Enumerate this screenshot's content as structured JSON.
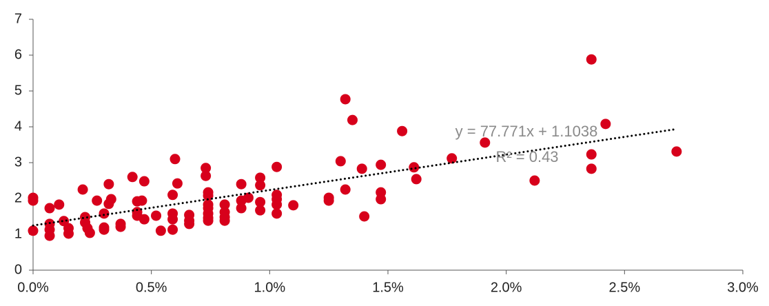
{
  "chart_data": {
    "type": "scatter",
    "x": [
      0,
      0,
      0,
      0.07,
      0.07,
      0.07,
      0.07,
      0.11,
      0.13,
      0.15,
      0.15,
      0.21,
      0.22,
      0.22,
      0.23,
      0.24,
      0.27,
      0.3,
      0.3,
      0.3,
      0.32,
      0.32,
      0.33,
      0.37,
      0.37,
      0.42,
      0.44,
      0.44,
      0.44,
      0.46,
      0.47,
      0.47,
      0.52,
      0.54,
      0.59,
      0.59,
      0.59,
      0.59,
      0.6,
      0.61,
      0.66,
      0.66,
      0.66,
      0.73,
      0.73,
      0.74,
      0.74,
      0.74,
      0.74,
      0.74,
      0.74,
      0.74,
      0.81,
      0.81,
      0.81,
      0.81,
      0.88,
      0.88,
      0.88,
      0.91,
      0.96,
      0.96,
      0.96,
      0.96,
      1.03,
      1.03,
      1.03,
      1.03,
      1.03,
      1.1,
      1.25,
      1.25,
      1.3,
      1.32,
      1.32,
      1.35,
      1.39,
      1.4,
      1.47,
      1.47,
      1.47,
      1.56,
      1.61,
      1.62,
      1.77,
      1.91,
      2.12,
      2.36,
      2.36,
      2.36,
      2.42,
      2.72
    ],
    "values": [
      2.02,
      1.94,
      1.1,
      1.73,
      1.29,
      1.13,
      0.96,
      1.83,
      1.37,
      1.17,
      1.02,
      2.25,
      1.48,
      1.33,
      1.17,
      1.04,
      1.94,
      1.58,
      1.19,
      1.13,
      2.4,
      1.85,
      1.98,
      1.29,
      1.21,
      2.6,
      1.92,
      1.62,
      1.52,
      1.94,
      2.48,
      1.42,
      1.52,
      1.1,
      2.1,
      1.58,
      1.42,
      1.13,
      3.1,
      2.42,
      1.54,
      1.38,
      1.29,
      2.85,
      2.63,
      2.17,
      2.08,
      1.83,
      1.73,
      1.58,
      1.46,
      1.38,
      1.83,
      1.62,
      1.48,
      1.38,
      2.4,
      1.94,
      1.73,
      2.02,
      2.58,
      2.37,
      1.9,
      1.67,
      2.88,
      2.1,
      1.98,
      1.83,
      1.58,
      1.81,
      2.02,
      1.94,
      3.04,
      4.77,
      2.25,
      4.19,
      2.83,
      1.5,
      2.94,
      2.17,
      1.98,
      3.88,
      2.87,
      2.54,
      3.12,
      3.56,
      2.5,
      5.88,
      3.23,
      2.83,
      4.08,
      3.31
    ],
    "color": "#d7001b",
    "trendline": "linear",
    "annotations": [
      "y = 77.771x + 1.1038",
      "R² = 0.43"
    ],
    "xlim": [
      0,
      3
    ],
    "xticks": [
      {
        "value": 0,
        "label": "0.0%"
      },
      {
        "value": 0.5,
        "label": "0.5%"
      },
      {
        "value": 1,
        "label": "1.0%"
      },
      {
        "value": 1.5,
        "label": "1.5%"
      },
      {
        "value": 2,
        "label": "2.0%"
      },
      {
        "value": 2.5,
        "label": "2.5%"
      },
      {
        "value": 3,
        "label": "3.0%"
      }
    ],
    "ylim": [
      0,
      7
    ],
    "yticks": [
      0,
      1,
      2,
      3,
      4,
      5,
      6,
      7
    ]
  }
}
